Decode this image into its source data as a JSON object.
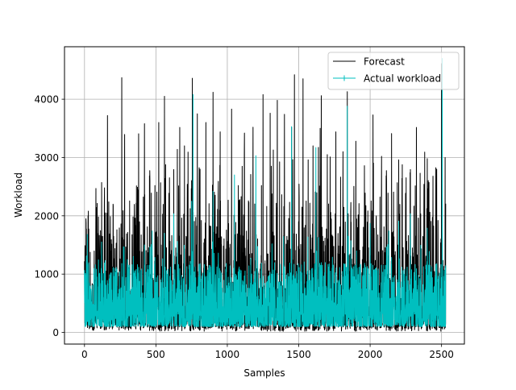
{
  "chart_data": {
    "type": "line",
    "title": "",
    "xlabel": "Samples",
    "ylabel": "Workload",
    "xlim": [
      -140,
      2660
    ],
    "ylim": [
      -200,
      4900
    ],
    "xticks": [
      0,
      500,
      1000,
      1500,
      2000,
      2500
    ],
    "yticks": [
      0,
      1000,
      2000,
      3000,
      4000
    ],
    "grid": true,
    "legend_position": "top-right",
    "n_samples": 2530,
    "series": [
      {
        "name": "Forecast",
        "color": "#000000",
        "approx_peaks": [
          {
            "x": 10,
            "y": 1950
          },
          {
            "x": 25,
            "y": 2000
          },
          {
            "x": 80,
            "y": 2470
          },
          {
            "x": 140,
            "y": 2480
          },
          {
            "x": 170,
            "y": 2240
          },
          {
            "x": 420,
            "y": 3580
          },
          {
            "x": 520,
            "y": 3600
          },
          {
            "x": 560,
            "y": 4050
          },
          {
            "x": 650,
            "y": 3140
          },
          {
            "x": 700,
            "y": 3200
          },
          {
            "x": 755,
            "y": 4360
          },
          {
            "x": 790,
            "y": 3750
          },
          {
            "x": 850,
            "y": 3600
          },
          {
            "x": 900,
            "y": 4120
          },
          {
            "x": 950,
            "y": 3440
          },
          {
            "x": 1030,
            "y": 3830
          },
          {
            "x": 1120,
            "y": 3420
          },
          {
            "x": 1180,
            "y": 3520
          },
          {
            "x": 1250,
            "y": 4080
          },
          {
            "x": 1300,
            "y": 3760
          },
          {
            "x": 1350,
            "y": 3980
          },
          {
            "x": 1400,
            "y": 3740
          },
          {
            "x": 1450,
            "y": 3520
          },
          {
            "x": 1470,
            "y": 4420
          },
          {
            "x": 1530,
            "y": 4350
          },
          {
            "x": 1600,
            "y": 3200
          },
          {
            "x": 1650,
            "y": 3500
          },
          {
            "x": 1700,
            "y": 3050
          },
          {
            "x": 1760,
            "y": 3440
          },
          {
            "x": 1810,
            "y": 3100
          },
          {
            "x": 1840,
            "y": 4130
          },
          {
            "x": 1900,
            "y": 3280
          },
          {
            "x": 1960,
            "y": 2860
          },
          {
            "x": 2020,
            "y": 3730
          },
          {
            "x": 2080,
            "y": 3020
          },
          {
            "x": 2150,
            "y": 3410
          },
          {
            "x": 2200,
            "y": 2960
          },
          {
            "x": 2280,
            "y": 2740
          },
          {
            "x": 2350,
            "y": 2730
          },
          {
            "x": 2400,
            "y": 2980
          },
          {
            "x": 2440,
            "y": 2680
          },
          {
            "x": 2500,
            "y": 4610
          },
          {
            "x": 2525,
            "y": 3000
          }
        ]
      },
      {
        "name": "Actual workload",
        "color": "#00bfbf",
        "approx_peaks": [
          {
            "x": 20,
            "y": 1680
          },
          {
            "x": 120,
            "y": 1550
          },
          {
            "x": 300,
            "y": 1250
          },
          {
            "x": 420,
            "y": 1500
          },
          {
            "x": 560,
            "y": 1700
          },
          {
            "x": 650,
            "y": 1560
          },
          {
            "x": 750,
            "y": 2250
          },
          {
            "x": 760,
            "y": 4080
          },
          {
            "x": 900,
            "y": 2420
          },
          {
            "x": 1050,
            "y": 2700
          },
          {
            "x": 1200,
            "y": 3030
          },
          {
            "x": 1450,
            "y": 3530
          },
          {
            "x": 1620,
            "y": 3170
          },
          {
            "x": 1840,
            "y": 3880
          },
          {
            "x": 2000,
            "y": 1870
          },
          {
            "x": 2200,
            "y": 1910
          },
          {
            "x": 2400,
            "y": 1790
          },
          {
            "x": 2505,
            "y": 4700
          }
        ]
      }
    ]
  }
}
